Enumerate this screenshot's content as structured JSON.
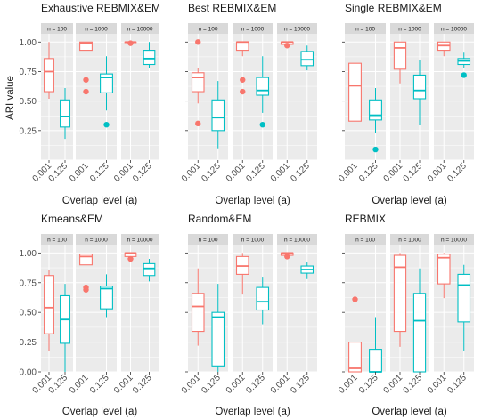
{
  "chart_data": {
    "type": "boxplot",
    "ylabel": "ARI value",
    "xlabel": "Overlap level (a)",
    "x_categories": [
      "0.001",
      "0.125"
    ],
    "facets": [
      "n = 100",
      "n = 1000",
      "n = 10000"
    ],
    "yticks": [
      "0.00",
      "0.25",
      "0.50",
      "0.75",
      "1.00"
    ],
    "ylim": [
      0,
      1.07
    ],
    "series_colors": {
      "0.001": "#F8766D",
      "0.125": "#00BFC4"
    },
    "strip_fill": "#D9D9D9",
    "panel_grid": true,
    "panels": [
      {
        "title": "Exhaustive REBMIX&EM",
        "show_ytick_labels": true,
        "yticks_shown": [
          "0.25",
          "0.50",
          "0.75",
          "1.00"
        ],
        "groups": [
          {
            "facet": "n = 100",
            "boxes": [
              {
                "x": "0.001",
                "min": 0.52,
                "q1": 0.58,
                "median": 0.75,
                "q3": 0.86,
                "max": 1.0,
                "outliers": []
              },
              {
                "x": "0.125",
                "min": 0.18,
                "q1": 0.28,
                "median": 0.37,
                "q3": 0.51,
                "max": 0.61,
                "outliers": []
              }
            ]
          },
          {
            "facet": "n = 1000",
            "boxes": [
              {
                "x": "0.001",
                "min": 0.89,
                "q1": 0.93,
                "median": 0.99,
                "q3": 1.0,
                "max": 1.0,
                "outliers": [
                  0.68,
                  0.58
                ]
              },
              {
                "x": "0.125",
                "min": 0.42,
                "q1": 0.57,
                "median": 0.7,
                "q3": 0.73,
                "max": 0.88,
                "outliers": [
                  0.3
                ]
              }
            ]
          },
          {
            "facet": "n = 10000",
            "boxes": [
              {
                "x": "0.001",
                "min": 0.99,
                "q1": 0.995,
                "median": 1.0,
                "q3": 1.0,
                "max": 1.0,
                "outliers": [
                  0.99
                ]
              },
              {
                "x": "0.125",
                "min": 0.78,
                "q1": 0.81,
                "median": 0.86,
                "q3": 0.93,
                "max": 1.0,
                "outliers": []
              }
            ]
          }
        ]
      },
      {
        "title": "Best REBMIX&EM",
        "show_ytick_labels": false,
        "yticks_shown": [
          "0.25",
          "0.50",
          "0.75",
          "1.00"
        ],
        "groups": [
          {
            "facet": "n = 100",
            "boxes": [
              {
                "x": "0.001",
                "min": 0.48,
                "q1": 0.58,
                "median": 0.7,
                "q3": 0.74,
                "max": 0.78,
                "outliers": [
                  1.0,
                  0.31
                ]
              },
              {
                "x": "0.125",
                "min": 0.1,
                "q1": 0.25,
                "median": 0.36,
                "q3": 0.51,
                "max": 0.67,
                "outliers": []
              }
            ]
          },
          {
            "facet": "n = 1000",
            "boxes": [
              {
                "x": "0.001",
                "min": 0.88,
                "q1": 0.93,
                "median": 1.0,
                "q3": 1.0,
                "max": 1.0,
                "outliers": [
                  0.68,
                  0.58
                ]
              },
              {
                "x": "0.125",
                "min": 0.4,
                "q1": 0.55,
                "median": 0.59,
                "q3": 0.7,
                "max": 0.88,
                "outliers": [
                  0.3
                ]
              }
            ]
          },
          {
            "facet": "n = 10000",
            "boxes": [
              {
                "x": "0.001",
                "min": 0.97,
                "q1": 0.98,
                "median": 1.0,
                "q3": 1.0,
                "max": 1.0,
                "outliers": [
                  0.97
                ]
              },
              {
                "x": "0.125",
                "min": 0.76,
                "q1": 0.8,
                "median": 0.85,
                "q3": 0.92,
                "max": 0.97,
                "outliers": []
              }
            ]
          }
        ]
      },
      {
        "title": "Single REBMIX&EM",
        "show_ytick_labels": false,
        "yticks_shown": [
          "0.25",
          "0.50",
          "0.75",
          "1.00"
        ],
        "groups": [
          {
            "facet": "n = 100",
            "boxes": [
              {
                "x": "0.001",
                "min": 0.22,
                "q1": 0.33,
                "median": 0.63,
                "q3": 0.82,
                "max": 1.0,
                "outliers": []
              },
              {
                "x": "0.125",
                "min": 0.23,
                "q1": 0.34,
                "median": 0.38,
                "q3": 0.51,
                "max": 0.61,
                "outliers": [
                  0.09
                ]
              }
            ]
          },
          {
            "facet": "n = 1000",
            "boxes": [
              {
                "x": "0.001",
                "min": 0.65,
                "q1": 0.77,
                "median": 0.95,
                "q3": 1.0,
                "max": 1.0,
                "outliers": []
              },
              {
                "x": "0.125",
                "min": 0.3,
                "q1": 0.52,
                "median": 0.59,
                "q3": 0.72,
                "max": 0.85,
                "outliers": []
              }
            ]
          },
          {
            "facet": "n = 10000",
            "boxes": [
              {
                "x": "0.001",
                "min": 0.88,
                "q1": 0.93,
                "median": 0.97,
                "q3": 1.0,
                "max": 1.0,
                "outliers": []
              },
              {
                "x": "0.125",
                "min": 0.78,
                "q1": 0.81,
                "median": 0.84,
                "q3": 0.86,
                "max": 0.91,
                "outliers": [
                  0.72
                ]
              }
            ]
          }
        ]
      },
      {
        "title": "Kmeans&EM",
        "show_ytick_labels": true,
        "yticks_shown": [
          "0.00",
          "0.25",
          "0.50",
          "0.75",
          "1.00"
        ],
        "groups": [
          {
            "facet": "n = 100",
            "boxes": [
              {
                "x": "0.001",
                "min": 0.18,
                "q1": 0.32,
                "median": 0.54,
                "q3": 0.81,
                "max": 0.86,
                "outliers": []
              },
              {
                "x": "0.125",
                "min": 0.0,
                "q1": 0.24,
                "median": 0.44,
                "q3": 0.64,
                "max": 0.74,
                "outliers": []
              }
            ]
          },
          {
            "facet": "n = 1000",
            "boxes": [
              {
                "x": "0.001",
                "min": 0.85,
                "q1": 0.9,
                "median": 0.97,
                "q3": 0.99,
                "max": 1.0,
                "outliers": [
                  0.71,
                  0.69
                ]
              },
              {
                "x": "0.125",
                "min": 0.46,
                "q1": 0.53,
                "median": 0.7,
                "q3": 0.72,
                "max": 0.82,
                "outliers": []
              }
            ]
          },
          {
            "facet": "n = 10000",
            "boxes": [
              {
                "x": "0.001",
                "min": 0.95,
                "q1": 0.97,
                "median": 1.0,
                "q3": 1.0,
                "max": 1.0,
                "outliers": [
                  0.95
                ]
              },
              {
                "x": "0.125",
                "min": 0.76,
                "q1": 0.81,
                "median": 0.87,
                "q3": 0.91,
                "max": 0.95,
                "outliers": []
              }
            ]
          }
        ]
      },
      {
        "title": "Random&EM",
        "show_ytick_labels": false,
        "yticks_shown": [
          "0.00",
          "0.25",
          "0.50",
          "0.75",
          "1.00"
        ],
        "groups": [
          {
            "facet": "n = 100",
            "boxes": [
              {
                "x": "0.001",
                "min": 0.22,
                "q1": 0.34,
                "median": 0.55,
                "q3": 0.66,
                "max": 0.87,
                "outliers": []
              },
              {
                "x": "0.125",
                "min": 0.0,
                "q1": 0.05,
                "median": 0.46,
                "q3": 0.5,
                "max": 0.74,
                "outliers": []
              }
            ]
          },
          {
            "facet": "n = 1000",
            "boxes": [
              {
                "x": "0.001",
                "min": 0.65,
                "q1": 0.82,
                "median": 0.89,
                "q3": 0.97,
                "max": 1.0,
                "outliers": []
              },
              {
                "x": "0.125",
                "min": 0.4,
                "q1": 0.52,
                "median": 0.59,
                "q3": 0.71,
                "max": 0.8,
                "outliers": []
              }
            ]
          },
          {
            "facet": "n = 10000",
            "boxes": [
              {
                "x": "0.001",
                "min": 0.97,
                "q1": 0.98,
                "median": 1.0,
                "q3": 1.0,
                "max": 1.0,
                "outliers": [
                  0.97
                ]
              },
              {
                "x": "0.125",
                "min": 0.78,
                "q1": 0.83,
                "median": 0.86,
                "q3": 0.89,
                "max": 0.92,
                "outliers": []
              }
            ]
          }
        ]
      },
      {
        "title": "REBMIX",
        "show_ytick_labels": false,
        "yticks_shown": [
          "0.00",
          "0.25",
          "0.50",
          "0.75",
          "1.00"
        ],
        "groups": [
          {
            "facet": "n = 100",
            "boxes": [
              {
                "x": "0.001",
                "min": 0.0,
                "q1": 0.0,
                "median": 0.03,
                "q3": 0.25,
                "max": 0.34,
                "outliers": [
                  0.61
                ]
              },
              {
                "x": "0.125",
                "min": 0.0,
                "q1": 0.0,
                "median": 0.0,
                "q3": 0.19,
                "max": 0.46,
                "outliers": []
              }
            ]
          },
          {
            "facet": "n = 1000",
            "boxes": [
              {
                "x": "0.001",
                "min": 0.21,
                "q1": 0.34,
                "median": 0.88,
                "q3": 0.98,
                "max": 1.0,
                "outliers": []
              },
              {
                "x": "0.125",
                "min": 0.0,
                "q1": 0.0,
                "median": 0.43,
                "q3": 0.66,
                "max": 0.87,
                "outliers": []
              }
            ]
          },
          {
            "facet": "n = 10000",
            "boxes": [
              {
                "x": "0.001",
                "min": 0.62,
                "q1": 0.74,
                "median": 0.96,
                "q3": 0.99,
                "max": 1.0,
                "outliers": []
              },
              {
                "x": "0.125",
                "min": 0.18,
                "q1": 0.42,
                "median": 0.73,
                "q3": 0.82,
                "max": 0.9,
                "outliers": []
              }
            ]
          }
        ]
      }
    ]
  }
}
